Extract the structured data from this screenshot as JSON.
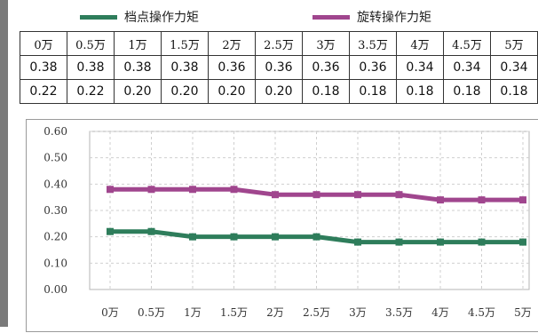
{
  "legend": [
    {
      "name": "档点操作力矩",
      "color": "#2e7d5b"
    },
    {
      "name": "旋转操作力矩",
      "color": "#a0468e"
    }
  ],
  "chart_data": {
    "type": "line",
    "categories": [
      "0万",
      "0.5万",
      "1万",
      "1.5万",
      "2万",
      "2.5万",
      "3万",
      "3.5万",
      "4万",
      "4.5万",
      "5万"
    ],
    "series": [
      {
        "name": "档点操作力矩",
        "color": "#2e7d5b",
        "values": [
          0.22,
          0.22,
          0.2,
          0.2,
          0.2,
          0.2,
          0.18,
          0.18,
          0.18,
          0.18,
          0.18
        ]
      },
      {
        "name": "旋转操作力矩",
        "color": "#a0468e",
        "values": [
          0.38,
          0.38,
          0.38,
          0.38,
          0.36,
          0.36,
          0.36,
          0.36,
          0.34,
          0.34,
          0.34
        ]
      }
    ],
    "ylim": [
      0,
      0.6
    ],
    "yticks": [
      "0.00",
      "0.10",
      "0.20",
      "0.30",
      "0.40",
      "0.50",
      "0.60"
    ],
    "xlabel": "",
    "ylabel": "",
    "grid": true,
    "legend_position": "top"
  },
  "table": {
    "header": [
      "0万",
      "0.5万",
      "1万",
      "1.5万",
      "2万",
      "2.5万",
      "3万",
      "3.5万",
      "4万",
      "4.5万",
      "5万"
    ],
    "rows": [
      [
        "0.38",
        "0.38",
        "0.38",
        "0.38",
        "0.36",
        "0.36",
        "0.36",
        "0.36",
        "0.34",
        "0.34",
        "0.34"
      ],
      [
        "0.22",
        "0.22",
        "0.20",
        "0.20",
        "0.20",
        "0.20",
        "0.18",
        "0.18",
        "0.18",
        "0.18",
        "0.18"
      ]
    ]
  }
}
